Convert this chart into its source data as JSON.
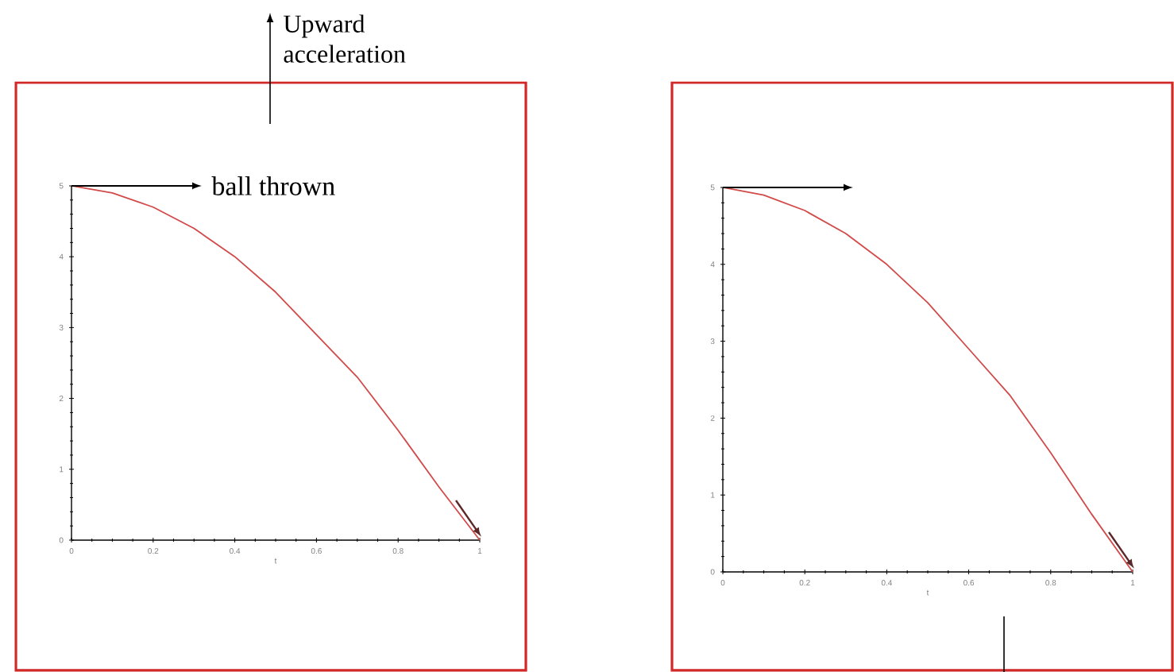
{
  "chart_data": [
    {
      "type": "line",
      "xlabel": "t",
      "x": [
        0,
        0.1,
        0.2,
        0.3,
        0.4,
        0.5,
        0.6,
        0.7,
        0.8,
        0.9,
        1
      ],
      "series": [
        {
          "color": "#d24a4a",
          "values": [
            5,
            4.9,
            4.7,
            4.4,
            4.0,
            3.5,
            2.9,
            2.3,
            1.55,
            0.75,
            0
          ]
        }
      ],
      "xlim": [
        0,
        1
      ],
      "ylim": [
        0,
        5
      ],
      "xticks": [
        0,
        0.2,
        0.4,
        0.6,
        0.8,
        1
      ],
      "yticks": [
        0,
        1,
        2,
        3,
        4,
        5
      ],
      "annotations": [
        "Upward acceleration",
        "ball thrown"
      ]
    },
    {
      "type": "line",
      "xlabel": "t",
      "x": [
        0,
        0.1,
        0.2,
        0.3,
        0.4,
        0.5,
        0.6,
        0.7,
        0.8,
        0.9,
        1
      ],
      "series": [
        {
          "color": "#d24a4a",
          "values": [
            5,
            4.9,
            4.7,
            4.4,
            4.0,
            3.5,
            2.9,
            2.3,
            1.55,
            0.75,
            0
          ]
        }
      ],
      "xlim": [
        0,
        1
      ],
      "ylim": [
        0,
        5
      ],
      "xticks": [
        0,
        0.2,
        0.4,
        0.6,
        0.8,
        1
      ],
      "yticks": [
        0,
        1,
        2,
        3,
        4,
        5
      ]
    }
  ]
}
